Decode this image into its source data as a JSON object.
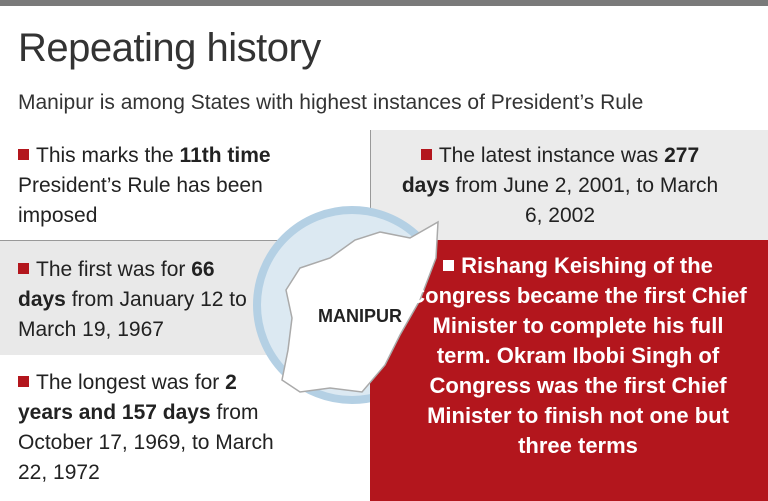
{
  "header": {
    "title": "Repeating history",
    "subtitle": "Manipur is among States with highest instances of President’s Rule"
  },
  "panels": [
    {
      "text": [
        "This marks the ",
        "11th time",
        " President’s Rule has been imposed"
      ]
    },
    {
      "text": [
        "The latest instance was ",
        "277 days",
        " from June 2, 2001, to March 6, 2002"
      ]
    },
    {
      "text": [
        "The first was for ",
        "66 days",
        " from January 12 to March 19, 1967"
      ]
    },
    {
      "text": [
        "The longest was for ",
        "2 years and 157 days",
        " from October 17, 1969, to March 22, 1972"
      ]
    },
    {
      "text": [
        "Rishang Keishing of the Congress became the first Chief Minister to complete his full term. Okram Ibobi Singh of Congress was the first Chief Minister to finish not one but three terms"
      ]
    }
  ],
  "map": {
    "label": "MANIPUR"
  }
}
